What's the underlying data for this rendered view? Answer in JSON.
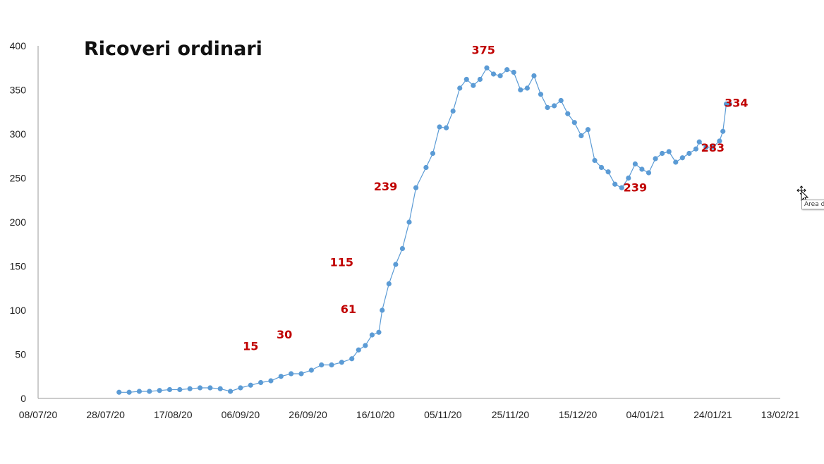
{
  "chart_data": {
    "type": "line",
    "title": "Ricoveri ordinari",
    "ylim": [
      0,
      400
    ],
    "y_ticks": [
      "0",
      "50",
      "100",
      "150",
      "200",
      "250",
      "300",
      "350",
      "400"
    ],
    "x_range": [
      "08/07/20",
      "13/02/21"
    ],
    "x_ticks": [
      "08/07/20",
      "28/07/20",
      "17/08/20",
      "06/09/20",
      "26/09/20",
      "16/10/20",
      "05/11/20",
      "25/11/20",
      "15/12/20",
      "04/01/21",
      "24/01/21",
      "13/02/21"
    ],
    "grid": false,
    "legend": "none",
    "series": [
      {
        "color": "#5b9bd5",
        "points": [
          [
            "01/08/20",
            7
          ],
          [
            "04/08/20",
            7
          ],
          [
            "07/08/20",
            8
          ],
          [
            "10/08/20",
            8
          ],
          [
            "13/08/20",
            9
          ],
          [
            "16/08/20",
            10
          ],
          [
            "19/08/20",
            10
          ],
          [
            "22/08/20",
            11
          ],
          [
            "25/08/20",
            12
          ],
          [
            "28/08/20",
            12
          ],
          [
            "31/08/20",
            11
          ],
          [
            "03/09/20",
            8
          ],
          [
            "06/09/20",
            12
          ],
          [
            "09/09/20",
            15
          ],
          [
            "12/09/20",
            18
          ],
          [
            "15/09/20",
            20
          ],
          [
            "18/09/20",
            25
          ],
          [
            "21/09/20",
            28
          ],
          [
            "24/09/20",
            28
          ],
          [
            "27/09/20",
            32
          ],
          [
            "30/09/20",
            38
          ],
          [
            "03/10/20",
            38
          ],
          [
            "06/10/20",
            41
          ],
          [
            "09/10/20",
            45
          ],
          [
            "11/10/20",
            55
          ],
          [
            "13/10/20",
            60
          ],
          [
            "15/10/20",
            72
          ],
          [
            "17/10/20",
            75
          ],
          [
            "18/10/20",
            100
          ],
          [
            "20/10/20",
            130
          ],
          [
            "22/10/20",
            152
          ],
          [
            "24/10/20",
            170
          ],
          [
            "26/10/20",
            200
          ],
          [
            "28/10/20",
            239
          ],
          [
            "31/10/20",
            262
          ],
          [
            "02/11/20",
            278
          ],
          [
            "04/11/20",
            308
          ],
          [
            "06/11/20",
            307
          ],
          [
            "08/11/20",
            326
          ],
          [
            "10/11/20",
            352
          ],
          [
            "12/11/20",
            362
          ],
          [
            "14/11/20",
            355
          ],
          [
            "16/11/20",
            362
          ],
          [
            "18/11/20",
            375
          ],
          [
            "20/11/20",
            368
          ],
          [
            "22/11/20",
            366
          ],
          [
            "24/11/20",
            373
          ],
          [
            "26/11/20",
            370
          ],
          [
            "28/11/20",
            350
          ],
          [
            "30/11/20",
            352
          ],
          [
            "02/12/20",
            366
          ],
          [
            "04/12/20",
            345
          ],
          [
            "06/12/20",
            330
          ],
          [
            "08/12/20",
            332
          ],
          [
            "10/12/20",
            338
          ],
          [
            "12/12/20",
            323
          ],
          [
            "14/12/20",
            313
          ],
          [
            "16/12/20",
            298
          ],
          [
            "18/12/20",
            305
          ],
          [
            "20/12/20",
            270
          ],
          [
            "22/12/20",
            262
          ],
          [
            "24/12/20",
            257
          ],
          [
            "26/12/20",
            243
          ],
          [
            "28/12/20",
            239
          ],
          [
            "30/12/20",
            250
          ],
          [
            "01/01/21",
            266
          ],
          [
            "03/01/21",
            260
          ],
          [
            "05/01/21",
            256
          ],
          [
            "07/01/21",
            272
          ],
          [
            "09/01/21",
            278
          ],
          [
            "11/01/21",
            280
          ],
          [
            "13/01/21",
            268
          ],
          [
            "15/01/21",
            273
          ],
          [
            "17/01/21",
            278
          ],
          [
            "19/01/21",
            283
          ],
          [
            "20/01/21",
            291
          ],
          [
            "22/01/21",
            285
          ],
          [
            "24/01/21",
            285
          ],
          [
            "26/01/21",
            292
          ],
          [
            "27/01/21",
            303
          ],
          [
            "28/01/21",
            334
          ],
          [
            "29/01/21",
            334
          ]
        ]
      }
    ],
    "annotations": [
      {
        "label": "15",
        "x": "09/09/20",
        "y": 55
      },
      {
        "label": "30",
        "x": "19/09/20",
        "y": 68
      },
      {
        "label": "115",
        "x": "06/10/20",
        "y": 150
      },
      {
        "label": "61",
        "x": "08/10/20",
        "y": 97
      },
      {
        "label": "239",
        "x": "19/10/20",
        "y": 236
      },
      {
        "label": "375",
        "x": "17/11/20",
        "y": 391
      },
      {
        "label": "239",
        "x": "01/01/21",
        "y": 235
      },
      {
        "label": "283",
        "x": "24/01/21",
        "y": 280
      },
      {
        "label": "334",
        "x": "31/01/21",
        "y": 331
      }
    ]
  },
  "tooltip": {
    "text": "Area d"
  },
  "cursor_icon": "move-cursor-icon"
}
